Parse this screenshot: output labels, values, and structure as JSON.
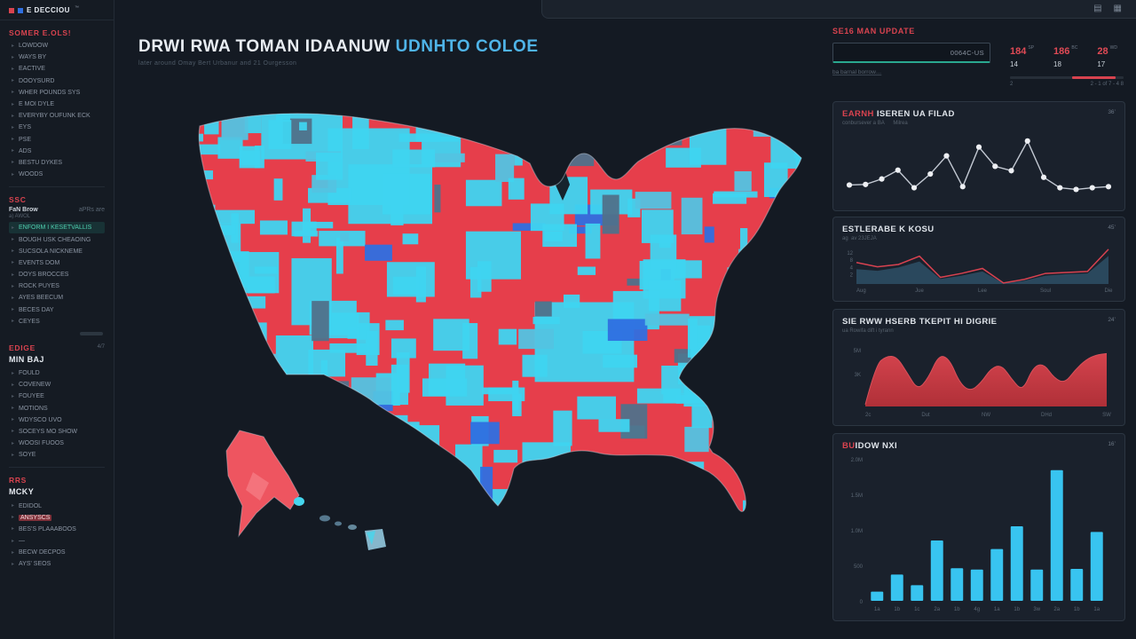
{
  "theme": {
    "bg": "#141a23",
    "panel": "#1a212c",
    "border": "#2c3642",
    "red": "#d8434f",
    "cyan": "#3fd4f0",
    "teal": "#2aa88f",
    "title_cyan": "#4fb4e8",
    "text": "#dfe4ea",
    "muted": "#56616d"
  },
  "topbar": {
    "icons": [
      {
        "name": "grid-icon",
        "glyph": "▤"
      },
      {
        "name": "apps-icon",
        "glyph": "▦"
      }
    ]
  },
  "sidebar": {
    "logo": {
      "text": "E DECCIOU",
      "mark": "™"
    },
    "sections": [
      {
        "id": "s1",
        "title": "SOMER E.OLS!",
        "items": [
          "LOWDOW",
          "WAYS BY",
          "EACTIVE",
          "DOOYSURD",
          "WHER POUNDS SYS",
          "E MOI DYLE",
          "EVERYBY OUFUNK ECK",
          "EYS",
          "PSE",
          "ADS",
          "BESTU DYKES",
          "WOODS"
        ]
      },
      {
        "id": "s2",
        "title": "SSC",
        "meta_left": "FaN Brow",
        "meta_right": "aPRs are",
        "meta_sub": "a) AWOL",
        "items": [
          {
            "label": "ENFORM I KESETVALLIS",
            "style": "selected"
          },
          "BOUGH USK CHEAOING",
          "SUCSOLA NICKNEME",
          "EVENTS DOM",
          "DOYS BROCCES",
          "ROCK PUYES",
          "AYES BEECUM",
          "BECES DAY",
          "CEYES"
        ]
      },
      {
        "id": "s3",
        "title": "EDIGE",
        "subtitle": "MIN BAJ",
        "corner": "4/7",
        "items": [
          "FOULD",
          "COVENEW",
          "FOUYEE",
          "MOTIONS",
          "WDYSCO UVO",
          "SOCEYS MO SHOW",
          "WOOSI FUOOS",
          "SOYE"
        ]
      },
      {
        "id": "s4",
        "title": "RRS",
        "subtitle": "MCKY",
        "items": [
          "EDIDOL",
          {
            "label": "ANSYSCS",
            "style": "danger"
          },
          "BES'S PLAAABOOS",
          "—",
          "BECW DECPOS",
          "AYS' SEOS"
        ]
      }
    ]
  },
  "main": {
    "title_white": "DRWI RWA TOMAN IDAANUW ",
    "title_cyan": "UDNHTO COLOE",
    "subtitle": "later around Omay Bert Urbanur and 21 Ourgesson"
  },
  "top_section": {
    "header": "SE16 MAN UPDATE",
    "input_value": "0064C-US",
    "link": "ba barnal borrow…",
    "stats": [
      {
        "value": "184",
        "sup": "SP",
        "sub": "14"
      },
      {
        "value": "186",
        "sup": "BC",
        "sub": "18"
      },
      {
        "value": "28",
        "sup": "WD",
        "sub": "17"
      }
    ],
    "progress": {
      "left_label": "2",
      "start_pct": 55,
      "width_pct": 38,
      "caption": "2 - 1 of 7 - 4 8"
    }
  },
  "cards": [
    {
      "title_red": "EARNH ",
      "title": "ISEREN UA FILAD",
      "corner": "36’",
      "subtitle": "conbursever a BA      Milrea"
    },
    {
      "title_red": "",
      "title": "ESTLERABE K KOSU",
      "corner": "45’",
      "subtitle": "ag  av 23JEJA"
    },
    {
      "title_red": "",
      "title": "SIE RWW HSERB TKEPIT HI DIGRIE",
      "corner": "24’",
      "subtitle": "ua Rowifa dift i tyrann"
    },
    {
      "title_red": "BU",
      "title": "IDOW NXI",
      "corner": "16’",
      "subtitle": ""
    }
  ],
  "chart_data": [
    {
      "id": "activity",
      "type": "line",
      "title": "EARNH ISEREN UA FILAD",
      "ymax": 10,
      "grid": false,
      "legend": false,
      "line_color": "#c3c9d3",
      "dot_color": "#edeff3",
      "values": [
        1.7,
        1.8,
        2.8,
        4.4,
        1.2,
        3.7,
        7.0,
        1.4,
        8.6,
        5.1,
        4.3,
        9.7,
        3.1,
        1.2,
        0.9,
        1.2,
        1.4
      ]
    },
    {
      "id": "signal",
      "type": "line-area",
      "title": "ESTLERABE K KOSU",
      "x_labels": [
        "Aug",
        "Jue",
        "Lee",
        "Soul",
        "Die"
      ],
      "y_labels": [
        "12",
        "8",
        "4",
        "2"
      ],
      "ymax": 11,
      "series": [
        {
          "name": "baseline",
          "kind": "area",
          "color": "#2e4f66",
          "values": [
            4.5,
            4.0,
            5.0,
            6.8,
            1.5,
            2.5,
            3.8,
            0.2,
            1.0,
            2.5,
            3.0,
            3.2,
            8.5
          ]
        },
        {
          "name": "signal",
          "kind": "line",
          "color": "#d84250",
          "values": [
            6.5,
            5.2,
            5.9,
            8.4,
            2.0,
            3.2,
            4.7,
            0.3,
            1.4,
            3.2,
            3.5,
            3.8,
            10.5
          ]
        }
      ]
    },
    {
      "id": "volume",
      "type": "area",
      "title": "SIE RWW HSERB TKEPIT HI DIGRIE",
      "y_labels": [
        "5M",
        "3K"
      ],
      "x_labels": [
        "2c",
        "Dut",
        "NW",
        "DHd",
        "SW"
      ],
      "ymax": 10,
      "fill_top": "#d4434d",
      "fill_bottom": "#b03038",
      "values": [
        0.3,
        6.6,
        8.0,
        7.9,
        5.3,
        2.6,
        4.5,
        8.2,
        7.6,
        3.7,
        2.4,
        3.7,
        6.1,
        6.6,
        4.2,
        2.4,
        6.3,
        6.8,
        4.5,
        3.7,
        5.8,
        7.4,
        8.2,
        8.4
      ]
    },
    {
      "id": "monthly",
      "type": "bar",
      "title": "BUIDOW NXI",
      "x_labels": [
        "1a",
        "1b",
        "1c",
        "2a",
        "1b",
        "4g",
        "1a",
        "1b",
        "3w",
        "2a",
        "1b",
        "1a"
      ],
      "y_labels": [
        "2.0M",
        "1.5M",
        "1.0M",
        "500",
        "0"
      ],
      "ymax": 2.0,
      "bar_color": "#38c4f0",
      "values": [
        0.13,
        0.37,
        0.22,
        0.85,
        0.46,
        0.44,
        0.73,
        1.05,
        0.44,
        1.84,
        0.45,
        0.97
      ]
    }
  ],
  "map": {
    "seed": 12,
    "tile_count": 260,
    "land_color": "#e63e4b",
    "tile_colors": [
      {
        "color": "#3fd4f0",
        "w": 0.78
      },
      {
        "color": "#53c3e2",
        "w": 0.08
      },
      {
        "color": "#2f6fe0",
        "w": 0.07
      },
      {
        "color": "#50718a",
        "w": 0.07
      }
    ],
    "outline_color": "rgba(200,230,240,0.38)",
    "background": "#141a23",
    "alaska_color": "#ee5560",
    "alaska_patch": "#f4737c",
    "hawaii_colors": [
      "#45d6ee",
      "#56788e",
      "#64889c",
      "#86b7cc"
    ]
  }
}
